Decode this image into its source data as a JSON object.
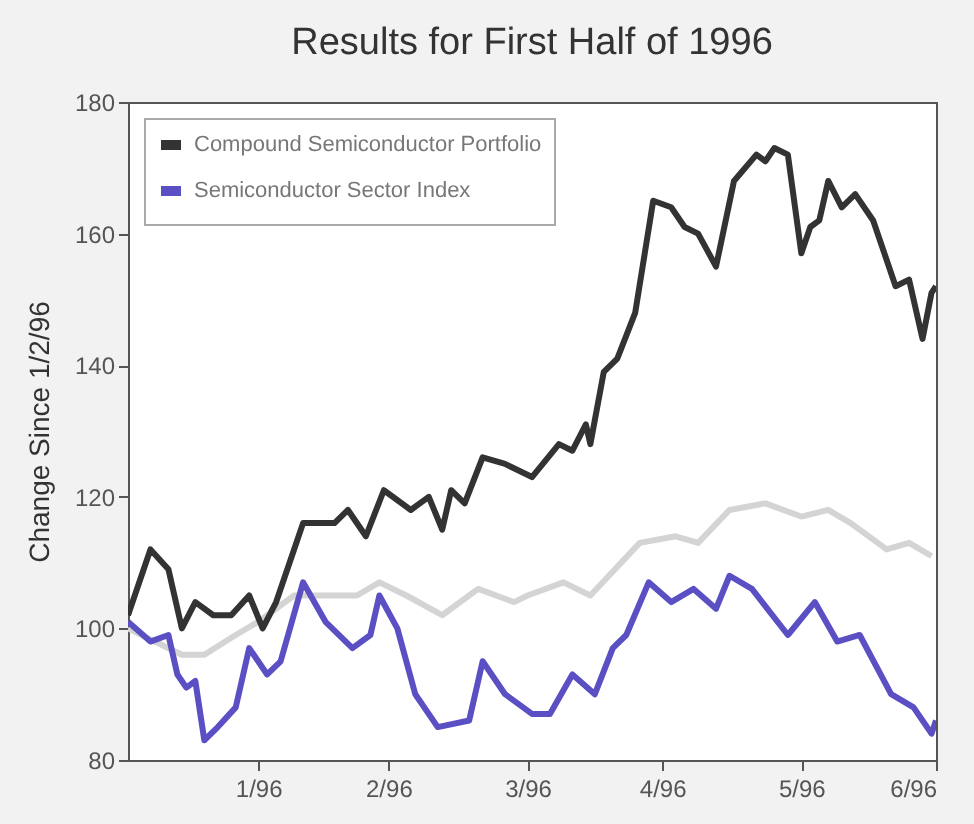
{
  "chart_data": {
    "type": "line",
    "title": "Results for First Half of 1996",
    "ylabel": "Change Since 1/2/96",
    "xlim": [
      "1996-01-02",
      "1996-06-30"
    ],
    "xticks": [
      {
        "value": "1996-01-31",
        "label": "1/96"
      },
      {
        "value": "1996-02-29",
        "label": "2/96"
      },
      {
        "value": "1996-03-31",
        "label": "3/96"
      },
      {
        "value": "1996-04-30",
        "label": "4/96"
      },
      {
        "value": "1996-05-31",
        "label": "5/96"
      },
      {
        "value": "1996-06-30",
        "label": "6/96"
      }
    ],
    "ylim": [
      80,
      180
    ],
    "yticks": [
      80,
      100,
      120,
      140,
      160,
      180
    ],
    "grid": false,
    "legend": "top left",
    "series": [
      {
        "name": "Compound Semiconductor Portfolio",
        "color": "#333333",
        "x": [
          "1996-01-02",
          "1996-01-07",
          "1996-01-11",
          "1996-01-14",
          "1996-01-17",
          "1996-01-21",
          "1996-01-25",
          "1996-01-29",
          "1996-02-01",
          "1996-02-04",
          "1996-02-08",
          "1996-02-10",
          "1996-02-17",
          "1996-02-20",
          "1996-02-24",
          "1996-02-28",
          "1996-03-05",
          "1996-03-09",
          "1996-03-12",
          "1996-03-14",
          "1996-03-17",
          "1996-03-21",
          "1996-03-26",
          "1996-04-01",
          "1996-04-07",
          "1996-04-10",
          "1996-04-13",
          "1996-04-14",
          "1996-04-17",
          "1996-04-20",
          "1996-04-24",
          "1996-04-28",
          "1996-05-02",
          "1996-05-05",
          "1996-05-08",
          "1996-05-12",
          "1996-05-16",
          "1996-05-21",
          "1996-05-23",
          "1996-05-25",
          "1996-05-28",
          "1996-05-31",
          "1996-06-02",
          "1996-06-04",
          "1996-06-06",
          "1996-06-09",
          "1996-06-12",
          "1996-06-16",
          "1996-06-21",
          "1996-06-24",
          "1996-06-27",
          "1996-06-29",
          "1996-06-30"
        ],
        "values": [
          102,
          112,
          109,
          100,
          104,
          102,
          102,
          105,
          100,
          104,
          112,
          116,
          116,
          118,
          114,
          121,
          118,
          120,
          115,
          121,
          119,
          126,
          125,
          123,
          128,
          127,
          131,
          128,
          139,
          141,
          148,
          165,
          164,
          161,
          160,
          155,
          168,
          172,
          171,
          173,
          172,
          157,
          161,
          162,
          168,
          164,
          166,
          162,
          152,
          153,
          144,
          151,
          152
        ]
      },
      {
        "name": "Semiconductor Sector Index",
        "color": "#5b4fc4",
        "x": [
          "1996-01-02",
          "1996-01-07",
          "1996-01-11",
          "1996-01-13",
          "1996-01-15",
          "1996-01-17",
          "1996-01-19",
          "1996-01-22",
          "1996-01-26",
          "1996-01-29",
          "1996-02-02",
          "1996-02-05",
          "1996-02-10",
          "1996-02-15",
          "1996-02-21",
          "1996-02-25",
          "1996-02-27",
          "1996-03-02",
          "1996-03-06",
          "1996-03-11",
          "1996-03-18",
          "1996-03-21",
          "1996-03-26",
          "1996-04-01",
          "1996-04-05",
          "1996-04-10",
          "1996-04-15",
          "1996-04-19",
          "1996-04-22",
          "1996-04-27",
          "1996-05-02",
          "1996-05-07",
          "1996-05-12",
          "1996-05-15",
          "1996-05-20",
          "1996-05-28",
          "1996-06-03",
          "1996-06-08",
          "1996-06-13",
          "1996-06-20",
          "1996-06-25",
          "1996-06-29",
          "1996-06-30"
        ],
        "values": [
          101,
          98,
          99,
          93,
          91,
          92,
          83,
          85,
          88,
          97,
          93,
          95,
          107,
          101,
          97,
          99,
          105,
          100,
          90,
          85,
          86,
          95,
          90,
          87,
          87,
          93,
          90,
          97,
          99,
          107,
          104,
          106,
          103,
          108,
          106,
          99,
          104,
          98,
          99,
          90,
          88,
          84,
          86
        ]
      },
      {
        "color": "#d4d4d4",
        "x": [
          "1996-01-02",
          "1996-01-14",
          "1996-01-19",
          "1996-01-26",
          "1996-01-31",
          "1996-02-08",
          "1996-02-15",
          "1996-02-22",
          "1996-02-27",
          "1996-03-04",
          "1996-03-12",
          "1996-03-20",
          "1996-03-28",
          "1996-03-31",
          "1996-04-08",
          "1996-04-14",
          "1996-04-25",
          "1996-05-03",
          "1996-05-08",
          "1996-05-15",
          "1996-05-23",
          "1996-05-31",
          "1996-06-06",
          "1996-06-11",
          "1996-06-19",
          "1996-06-24",
          "1996-06-29"
        ],
        "values": [
          100,
          96,
          96,
          99,
          101,
          105,
          105,
          105,
          107,
          105,
          102,
          106,
          104,
          105,
          107,
          105,
          113,
          114,
          113,
          118,
          119,
          117,
          118,
          116,
          112,
          113,
          111
        ]
      }
    ]
  }
}
